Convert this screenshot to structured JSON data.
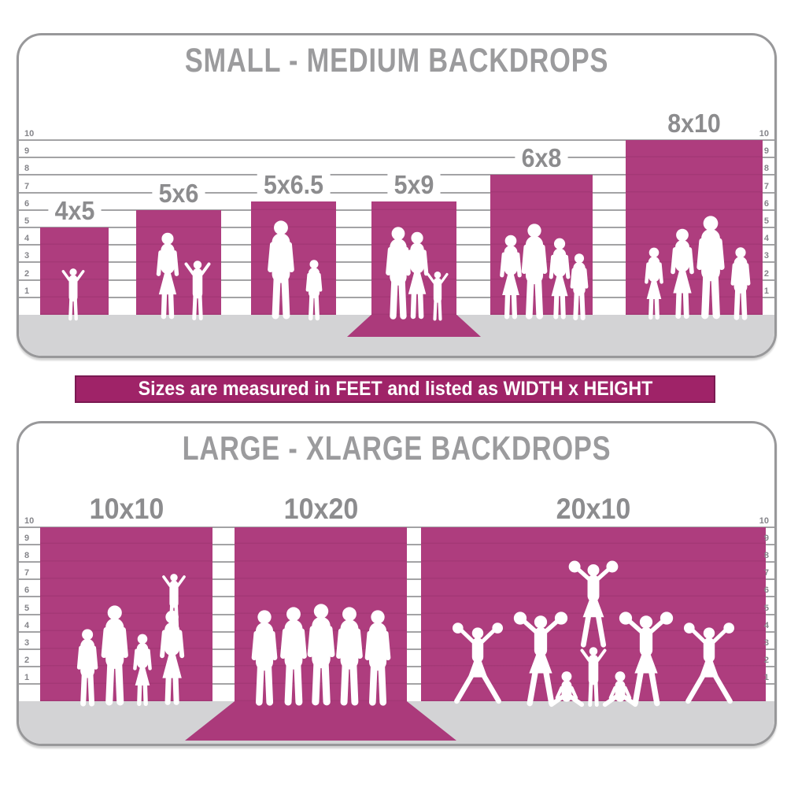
{
  "colors": {
    "backdrop_magenta": "#ae3d7e",
    "sweep_magenta": "#ab3a7b",
    "banner_magenta": "#9f2368",
    "banner_border": "#7a1a52",
    "title_gray": "#9b9b9d",
    "label_gray": "#8c8c8e",
    "gridline_gray": "#a3a3a5",
    "floor_gray": "#d3d3d5",
    "panel_border_gray": "#98989a",
    "silhouette_white": "#ffffff"
  },
  "banner": {
    "text": "Sizes are measured in FEET and listed as WIDTH x HEIGHT"
  },
  "axis_unit": "feet",
  "panels": [
    {
      "title": "SMALL - MEDIUM BACKDROPS",
      "axis_ticks": [
        "10",
        "9",
        "8",
        "7",
        "6",
        "5",
        "4",
        "3",
        "2",
        "1"
      ],
      "backdrops": [
        {
          "label": "4x5",
          "width_ft": 4,
          "height_ft": 5,
          "people": [
            "toddler-girl-arms-out"
          ],
          "floor_sweep": false
        },
        {
          "label": "5x6",
          "width_ft": 5,
          "height_ft": 6,
          "people": [
            "woman",
            "child-arm-raised"
          ],
          "floor_sweep": false
        },
        {
          "label": "5x6.5",
          "width_ft": 5,
          "height_ft": 6.5,
          "people": [
            "man",
            "boy"
          ],
          "floor_sweep": false
        },
        {
          "label": "5x9",
          "width_ft": 5,
          "height_ft": 9,
          "people": [
            "man",
            "woman",
            "child-arm-raised"
          ],
          "floor_sweep": true
        },
        {
          "label": "6x8",
          "width_ft": 6,
          "height_ft": 8,
          "people": [
            "woman",
            "man",
            "woman",
            "boy"
          ],
          "floor_sweep": false
        },
        {
          "label": "8x10",
          "width_ft": 8,
          "height_ft": 10,
          "people": [
            "girl",
            "woman",
            "man",
            "boy"
          ],
          "floor_sweep": false
        }
      ]
    },
    {
      "title": "LARGE - XLARGE BACKDROPS",
      "axis_ticks": [
        "10",
        "9",
        "8",
        "7",
        "6",
        "5",
        "4",
        "3",
        "2",
        "1"
      ],
      "backdrops": [
        {
          "label": "10x10",
          "width_ft": 10,
          "height_ft": 10,
          "people": [
            "boy",
            "man",
            "girl",
            "woman-with-child-on-shoulders"
          ],
          "floor_sweep": false
        },
        {
          "label": "10x20",
          "width_ft": 10,
          "height_ft": 20,
          "people": [
            "man",
            "man",
            "man",
            "man",
            "man"
          ],
          "floor_sweep": true
        },
        {
          "label": "20x10",
          "width_ft": 20,
          "height_ft": 10,
          "people": [
            "cheerleader-straddle",
            "cheerleader-poms-up",
            "flyer-cheerleader",
            "cheerleader-poms-up",
            "cheerleader-straddle",
            "sitting-cheerleader",
            "sitting-cheerleader",
            "child-arms-up"
          ],
          "floor_sweep": false
        }
      ]
    }
  ]
}
